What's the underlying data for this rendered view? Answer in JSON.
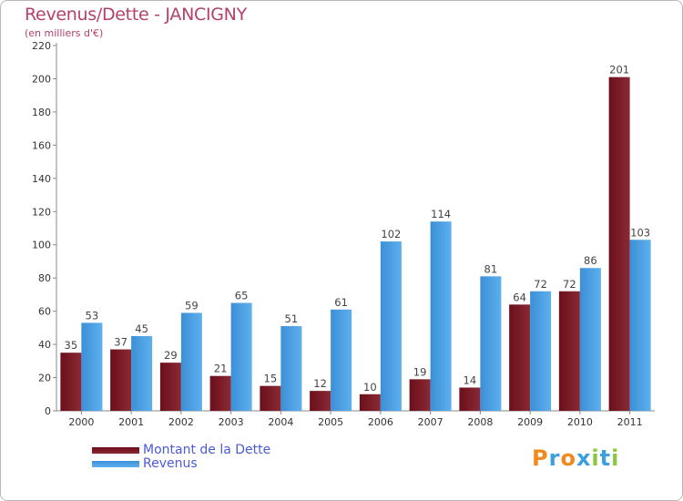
{
  "header": {
    "title": "Revenus/Dette - JANCIGNY",
    "subtitle": "(en milliers d'€)"
  },
  "chart_data": {
    "type": "bar",
    "categories": [
      "2000",
      "2001",
      "2002",
      "2003",
      "2004",
      "2005",
      "2006",
      "2007",
      "2008",
      "2009",
      "2010",
      "2011"
    ],
    "series": [
      {
        "name": "Montant de la Dette",
        "values": [
          35,
          37,
          29,
          21,
          15,
          12,
          10,
          19,
          14,
          64,
          72,
          201
        ]
      },
      {
        "name": "Revenus",
        "values": [
          53,
          45,
          59,
          65,
          51,
          61,
          102,
          114,
          81,
          72,
          86,
          103
        ]
      }
    ],
    "yticks": [
      0,
      20,
      40,
      60,
      80,
      100,
      120,
      140,
      160,
      180,
      200,
      220
    ],
    "ylim": [
      0,
      220
    ],
    "grid": false,
    "legend": "bottom-left"
  },
  "colors": {
    "dette": "#6b0f1a",
    "dette_light": "#8a2a35",
    "revenus": "#3c8fd6",
    "revenus_light": "#5db0ee",
    "axis": "#888888"
  },
  "legend": {
    "items": [
      {
        "label": "Montant de la Dette"
      },
      {
        "label": "Revenus"
      }
    ]
  },
  "logo": {
    "letters": [
      "P",
      "r",
      "o",
      "x",
      "i",
      "t",
      "i"
    ],
    "colors": [
      "#f08a1c",
      "#3aa0e0",
      "#f08a1c",
      "#3aa0e0",
      "#8cc63e",
      "#3aa0e0",
      "#8cc63e"
    ]
  }
}
